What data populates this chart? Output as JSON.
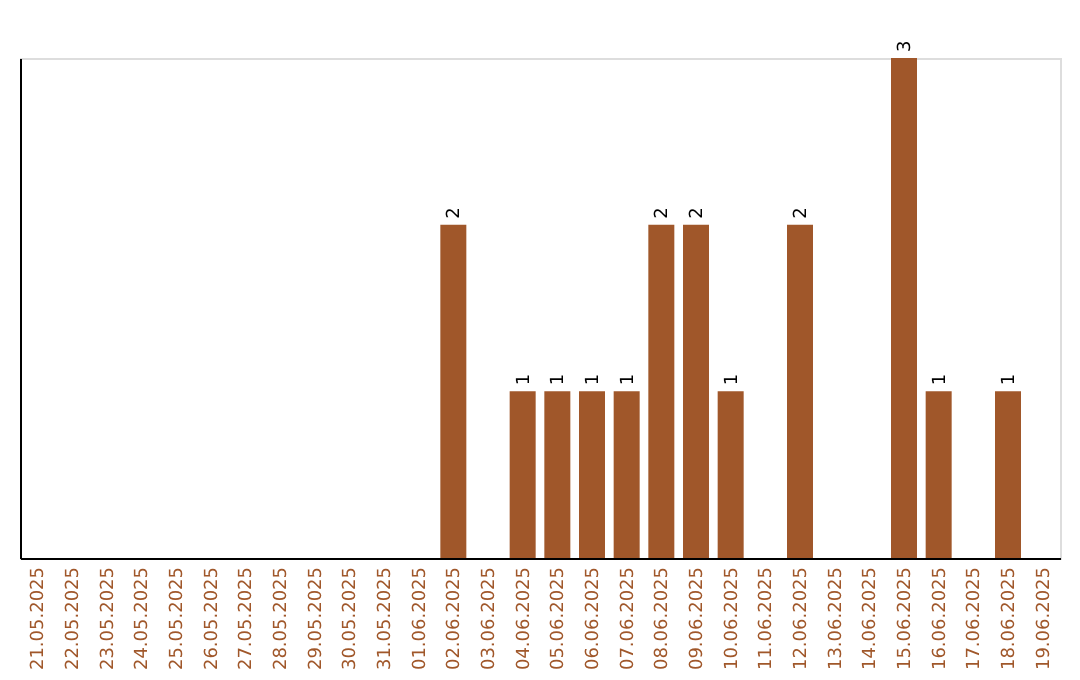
{
  "chart_data": {
    "type": "bar",
    "categories": [
      "21.05.2025",
      "22.05.2025",
      "23.05.2025",
      "24.05.2025",
      "25.05.2025",
      "26.05.2025",
      "27.05.2025",
      "28.05.2025",
      "29.05.2025",
      "30.05.2025",
      "31.05.2025",
      "01.06.2025",
      "02.06.2025",
      "03.06.2025",
      "04.06.2025",
      "05.06.2025",
      "06.06.2025",
      "07.06.2025",
      "08.06.2025",
      "09.06.2025",
      "10.06.2025",
      "11.06.2025",
      "12.06.2025",
      "13.06.2025",
      "14.06.2025",
      "15.06.2025",
      "16.06.2025",
      "17.06.2025",
      "18.06.2025",
      "19.06.2025"
    ],
    "values": [
      null,
      null,
      null,
      null,
      null,
      null,
      null,
      null,
      null,
      null,
      null,
      null,
      2,
      null,
      1,
      1,
      1,
      1,
      2,
      2,
      1,
      null,
      2,
      null,
      null,
      3,
      1,
      null,
      1,
      null
    ],
    "value_labels": [
      null,
      null,
      null,
      null,
      null,
      null,
      null,
      null,
      null,
      null,
      null,
      null,
      "2",
      null,
      "1",
      "1",
      "1",
      "1",
      "2",
      "2",
      "1",
      null,
      "2",
      null,
      null,
      "3",
      "1",
      null,
      "1",
      null
    ],
    "color": "#a0572a",
    "tick_labels": "x",
    "grid": false
  }
}
